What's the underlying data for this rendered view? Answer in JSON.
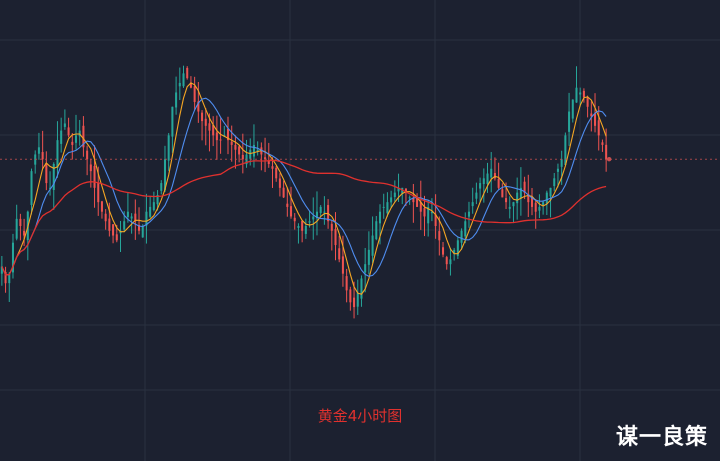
{
  "caption": "黄金4小时图",
  "brand": "谋一良策",
  "colors": {
    "background": "#1c2130",
    "grid": "#2a3140",
    "up": "#26a69a",
    "down": "#ef5350",
    "ma_orange": "#f5a623",
    "ma_blue": "#4f8df0",
    "ma_red": "#e0312e",
    "reference_line": "#c85050"
  },
  "chart_data": {
    "type": "candlestick",
    "title": "",
    "xlabel": "",
    "ylabel": "",
    "grid": true,
    "close": [
      25,
      18,
      22,
      35,
      45,
      42,
      38,
      48,
      65,
      72,
      75,
      70,
      60,
      58,
      68,
      78,
      82,
      85,
      80,
      76,
      80,
      82,
      75,
      70,
      65,
      58,
      52,
      48,
      44,
      40,
      38,
      36,
      40,
      44,
      48,
      46,
      44,
      40,
      42,
      48,
      50,
      52,
      55,
      60,
      70,
      80,
      92,
      98,
      102,
      106,
      104,
      100,
      94,
      90,
      86,
      84,
      82,
      80,
      78,
      78,
      80,
      78,
      76,
      74,
      72,
      70,
      72,
      74,
      76,
      74,
      72,
      70,
      68,
      66,
      62,
      58,
      54,
      50,
      46,
      44,
      42,
      40,
      42,
      44,
      46,
      48,
      50,
      48,
      44,
      40,
      34,
      28,
      22,
      15,
      10,
      8,
      14,
      20,
      26,
      32,
      38,
      44,
      48,
      50,
      52,
      54,
      56,
      58,
      58,
      56,
      54,
      52,
      50,
      48,
      46,
      50,
      48,
      42,
      36,
      30,
      26,
      28,
      32,
      36,
      40,
      44,
      48,
      52,
      56,
      60,
      62,
      64,
      66,
      62,
      58,
      54,
      52,
      50,
      52,
      56,
      58,
      56,
      52,
      50,
      48,
      50,
      52,
      56,
      58,
      62,
      66,
      70,
      80,
      90,
      95,
      100,
      98,
      96,
      92,
      88,
      84,
      80,
      76,
      70
    ],
    "ma_periods": [
      5,
      10,
      60
    ],
    "reference_level": "last",
    "ylim": [
      -10,
      120
    ]
  }
}
